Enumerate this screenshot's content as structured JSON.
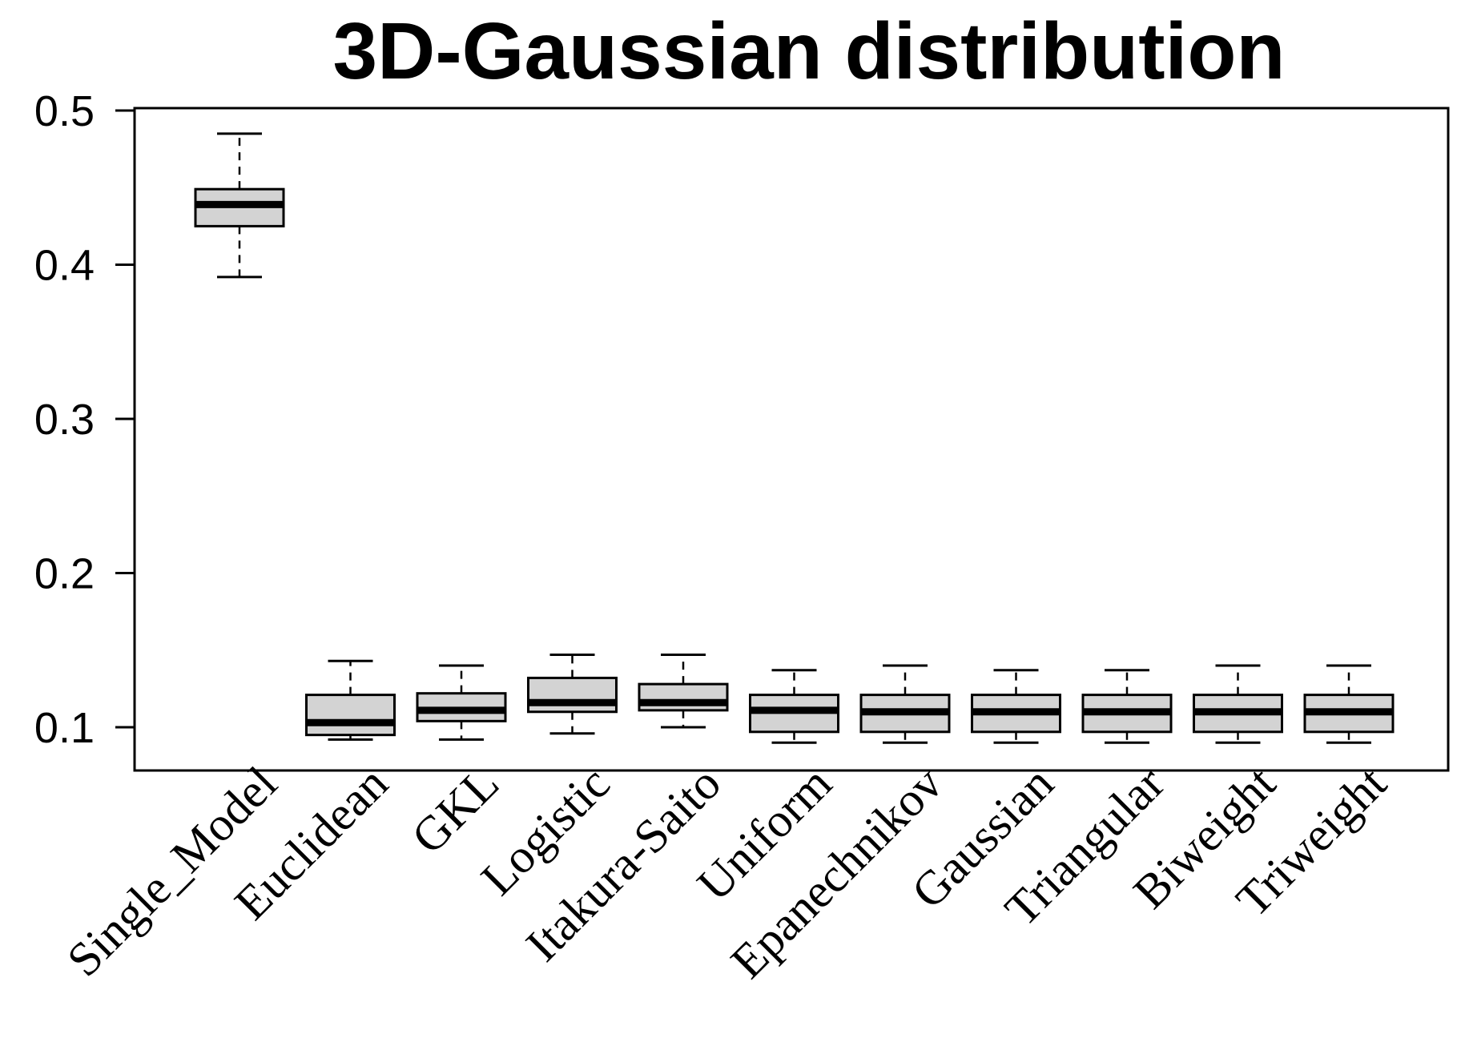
{
  "chart_data": {
    "type": "boxplot",
    "title": "3D-Gaussian distribution",
    "xlabel": "",
    "ylabel": "",
    "ylim": [
      0.073,
      0.5
    ],
    "yticks": [
      0.1,
      0.2,
      0.3,
      0.4,
      0.5
    ],
    "ytick_labels": [
      "0.1",
      "0.2",
      "0.3",
      "0.4",
      "0.5"
    ],
    "grid": false,
    "legend": "none",
    "box_fill": "#d3d3d3",
    "categories": [
      "Single_Model",
      "Euclidean",
      "GKL",
      "Logistic",
      "Itakura-Saito",
      "Uniform",
      "Epanechnikov",
      "Gaussian",
      "Triangular",
      "Biweight",
      "Triweight"
    ],
    "boxes": [
      {
        "min": 0.392,
        "q1": 0.425,
        "median": 0.439,
        "q3": 0.449,
        "max": 0.485
      },
      {
        "min": 0.092,
        "q1": 0.095,
        "median": 0.103,
        "q3": 0.121,
        "max": 0.143
      },
      {
        "min": 0.092,
        "q1": 0.104,
        "median": 0.111,
        "q3": 0.122,
        "max": 0.14
      },
      {
        "min": 0.096,
        "q1": 0.11,
        "median": 0.116,
        "q3": 0.132,
        "max": 0.147
      },
      {
        "min": 0.1,
        "q1": 0.111,
        "median": 0.116,
        "q3": 0.128,
        "max": 0.147
      },
      {
        "min": 0.09,
        "q1": 0.097,
        "median": 0.111,
        "q3": 0.121,
        "max": 0.137
      },
      {
        "min": 0.09,
        "q1": 0.097,
        "median": 0.11,
        "q3": 0.121,
        "max": 0.14
      },
      {
        "min": 0.09,
        "q1": 0.097,
        "median": 0.11,
        "q3": 0.121,
        "max": 0.137
      },
      {
        "min": 0.09,
        "q1": 0.097,
        "median": 0.11,
        "q3": 0.121,
        "max": 0.137
      },
      {
        "min": 0.09,
        "q1": 0.097,
        "median": 0.11,
        "q3": 0.121,
        "max": 0.14
      },
      {
        "min": 0.09,
        "q1": 0.097,
        "median": 0.11,
        "q3": 0.121,
        "max": 0.14
      }
    ]
  }
}
